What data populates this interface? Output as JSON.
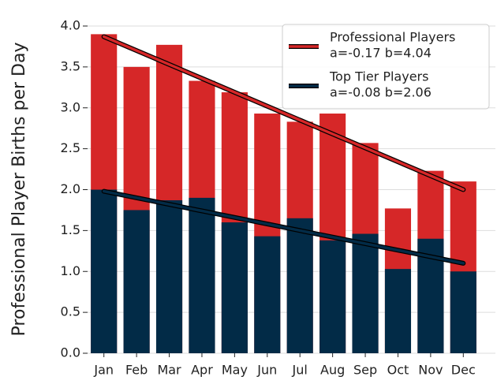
{
  "chart_data": {
    "type": "overlap-bar",
    "y_label": "Professional Player Births per Day",
    "categories": [
      "Jan",
      "Feb",
      "Mar",
      "Apr",
      "May",
      "Jun",
      "Jul",
      "Aug",
      "Sep",
      "Oct",
      "Nov",
      "Dec"
    ],
    "series": [
      {
        "name": "Professional Players",
        "color": "#d62728",
        "trend_label": "a=-0.17 b=4.04",
        "trend_values": [
          3.87,
          2.0
        ],
        "values": [
          3.9,
          3.5,
          3.77,
          3.33,
          3.19,
          2.93,
          2.83,
          2.93,
          2.57,
          1.77,
          2.23,
          2.1
        ]
      },
      {
        "name": "Top Tier Players",
        "color": "#022b47",
        "trend_label": "a=-0.08 b=2.06",
        "trend_values": [
          1.98,
          1.1
        ],
        "values": [
          2.0,
          1.75,
          1.87,
          1.9,
          1.6,
          1.43,
          1.65,
          1.38,
          1.46,
          1.03,
          1.4,
          1.0
        ]
      }
    ],
    "ylim": [
      0,
      4.0
    ],
    "yticks": [
      {
        "value": 0,
        "label": "0.0"
      },
      {
        "value": 0.5,
        "label": "0.5"
      },
      {
        "value": 1,
        "label": "1.0"
      },
      {
        "value": 1.5,
        "label": "1.5"
      },
      {
        "value": 2,
        "label": "2.0"
      },
      {
        "value": 2.5,
        "label": "2.5"
      },
      {
        "value": 3,
        "label": "3.0"
      },
      {
        "value": 3.5,
        "label": "3.5"
      },
      {
        "value": 4,
        "label": "4.0"
      }
    ],
    "grid": true,
    "legend": "upper right"
  }
}
